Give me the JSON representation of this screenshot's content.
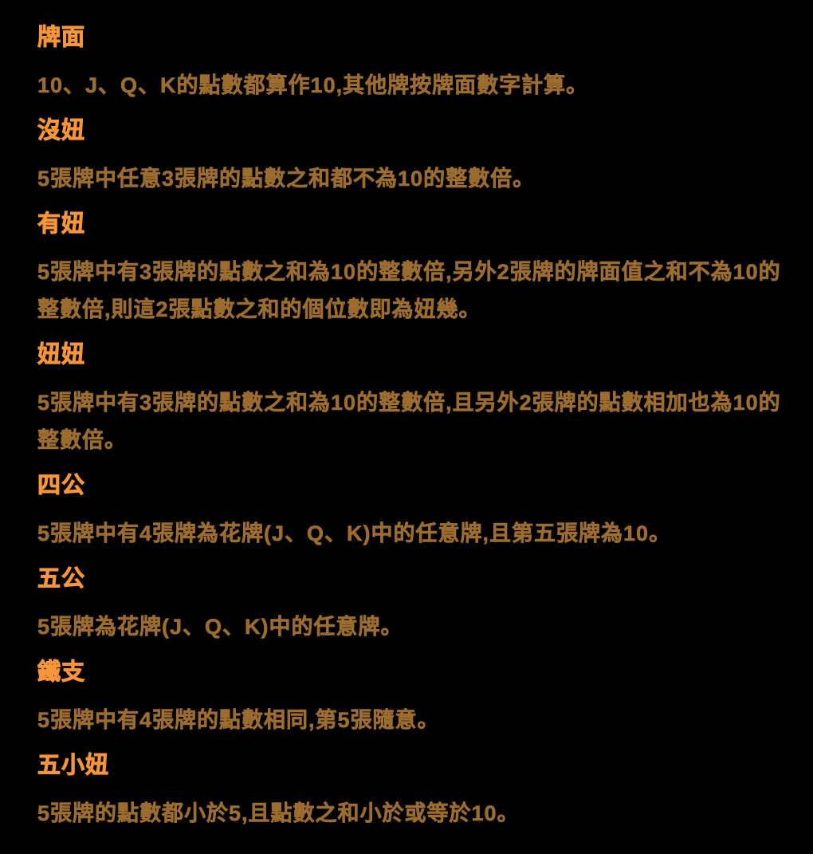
{
  "page": {
    "background_color": "#000000",
    "heading_color": "#f79539",
    "body_color": "#9c6d2e"
  },
  "sections": [
    {
      "heading": "牌面",
      "body": "10、J、Q、K的點數都算作10,其他牌按牌面數字計算。"
    },
    {
      "heading": "沒妞",
      "body": "5張牌中任意3張牌的點數之和都不為10的整數倍。"
    },
    {
      "heading": "有妞",
      "body": "5張牌中有3張牌的點數之和為10的整數倍,另外2張牌的牌面值之和不為10的整數倍,則這2張點數之和的個位數即為妞幾。"
    },
    {
      "heading": "妞妞",
      "body": "5張牌中有3張牌的點數之和為10的整數倍,且另外2張牌的點數相加也為10的整數倍。"
    },
    {
      "heading": "四公",
      "body": "5張牌中有4張牌為花牌(J、Q、K)中的任意牌,且第五張牌為10。"
    },
    {
      "heading": "五公",
      "body": "5張牌為花牌(J、Q、K)中的任意牌。"
    },
    {
      "heading": "鐵支",
      "body": "5張牌中有4張牌的點數相同,第5張隨意。"
    },
    {
      "heading": "五小妞",
      "body": "5張牌的點數都小於5,且點數之和小於或等於10。"
    }
  ]
}
